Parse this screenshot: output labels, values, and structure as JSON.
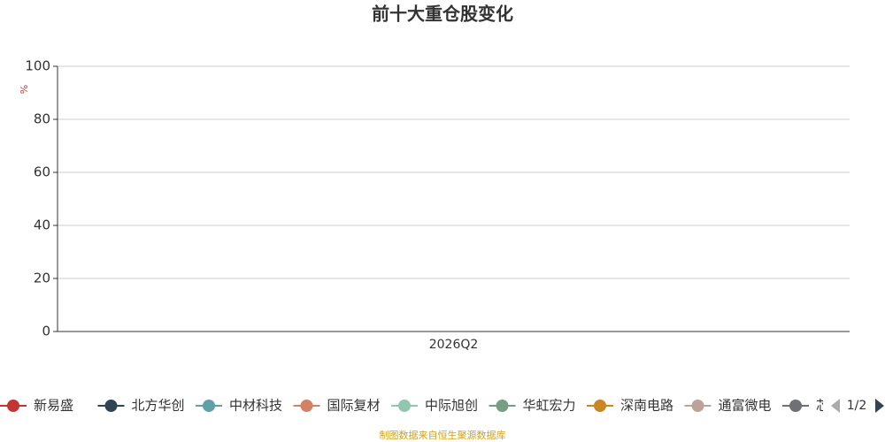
{
  "chart_data": {
    "type": "line",
    "title": "前十大重仓股变化",
    "y_label": "%",
    "categories": [
      "2026Q2"
    ],
    "series": [
      {
        "name": "新易盛",
        "color": "#c23531",
        "values": [
          null
        ]
      },
      {
        "name": "北方华创",
        "color": "#2f4554",
        "values": [
          null
        ]
      },
      {
        "name": "中材科技",
        "color": "#61a0a8",
        "values": [
          null
        ]
      },
      {
        "name": "国际复材",
        "color": "#d48265",
        "values": [
          null
        ]
      },
      {
        "name": "中际旭创",
        "color": "#91c7ae",
        "values": [
          null
        ]
      },
      {
        "name": "华虹宏力",
        "color": "#749f83",
        "values": [
          null
        ]
      },
      {
        "name": "深南电路",
        "color": "#ca8622",
        "values": [
          null
        ]
      },
      {
        "name": "通富微电",
        "color": "#bda29a",
        "values": [
          null
        ]
      },
      {
        "name": "芯",
        "color": "#6e7074",
        "values": [
          null
        ]
      }
    ],
    "ylim": [
      0,
      100
    ],
    "yticks": [
      0,
      20,
      40,
      60,
      80,
      100
    ],
    "grid": true,
    "legend_page": "1/2",
    "source": "制图数据来自恒生聚源数据库"
  }
}
